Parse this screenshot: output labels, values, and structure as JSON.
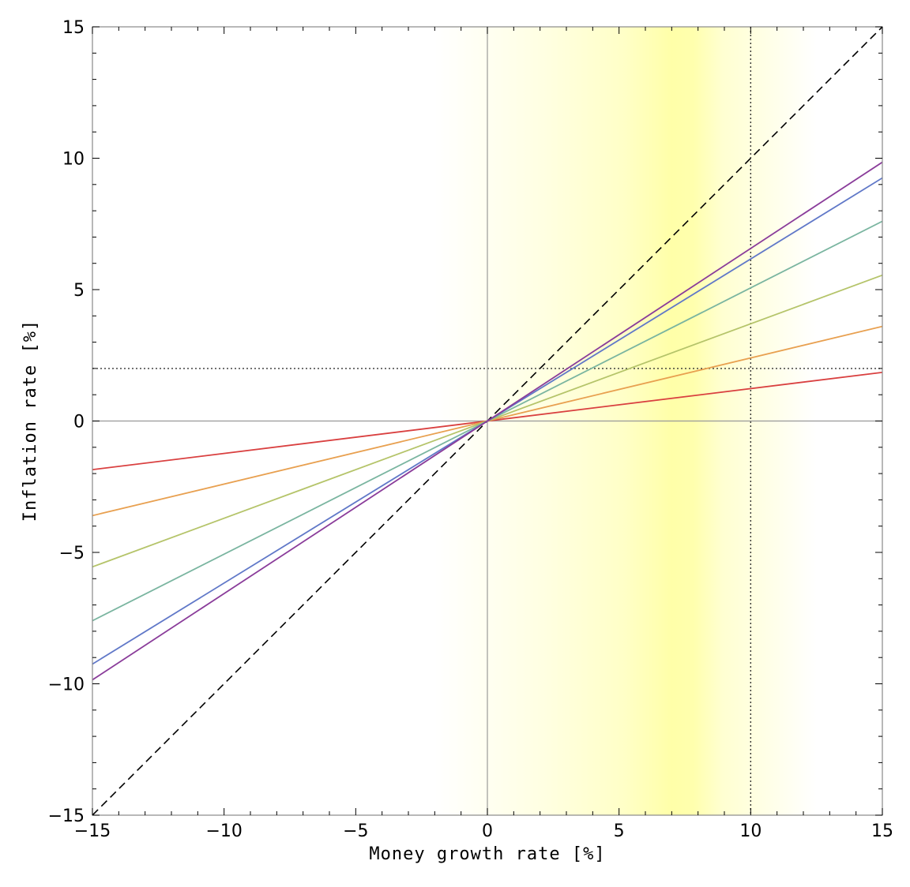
{
  "chart_data": {
    "type": "line",
    "title": "",
    "xlabel": "Money growth rate [%]",
    "ylabel": "Inflation rate [%]",
    "xlim": [
      -15,
      15
    ],
    "ylim": [
      -15,
      15
    ],
    "xticks": [
      -15,
      -10,
      -5,
      0,
      5,
      10,
      15
    ],
    "yticks": [
      -15,
      -10,
      -5,
      0,
      5,
      10,
      15
    ],
    "xtick_labels": [
      "−15",
      "−10",
      "−5",
      "0",
      "5",
      "10",
      "15"
    ],
    "ytick_labels": [
      "−15",
      "−10",
      "−5",
      "0",
      "5",
      "10",
      "15"
    ],
    "grid": false,
    "legend": "none",
    "shaded_band": {
      "x_from": -2,
      "x_peak": 7,
      "x_to": 12.5,
      "color": "#ffff99"
    },
    "reference_lines": [
      {
        "kind": "diagonal",
        "slope": 1,
        "style": "dashed",
        "color": "#000000"
      },
      {
        "kind": "vertical",
        "x": 10,
        "style": "dotted",
        "color": "#333333"
      },
      {
        "kind": "horizontal",
        "y": 2,
        "style": "dotted",
        "color": "#333333"
      },
      {
        "kind": "vertical",
        "x": 0,
        "style": "solid",
        "color": "#999999"
      },
      {
        "kind": "horizontal",
        "y": 0,
        "style": "solid",
        "color": "#999999"
      }
    ],
    "series": [
      {
        "color": "#d94040",
        "x": [
          -15,
          15
        ],
        "values": [
          -1.85,
          1.85
        ]
      },
      {
        "color": "#e8a050",
        "x": [
          -15,
          15
        ],
        "values": [
          -3.6,
          3.6
        ]
      },
      {
        "color": "#b5c46a",
        "x": [
          -15,
          15
        ],
        "values": [
          -5.55,
          5.55
        ]
      },
      {
        "color": "#7ab5a0",
        "x": [
          -15,
          15
        ],
        "values": [
          -7.6,
          7.6
        ]
      },
      {
        "color": "#6078c8",
        "x": [
          -15,
          15
        ],
        "values": [
          -9.25,
          9.25
        ]
      },
      {
        "color": "#8a3c9a",
        "x": [
          -15,
          15
        ],
        "values": [
          -9.85,
          9.85
        ]
      }
    ]
  }
}
